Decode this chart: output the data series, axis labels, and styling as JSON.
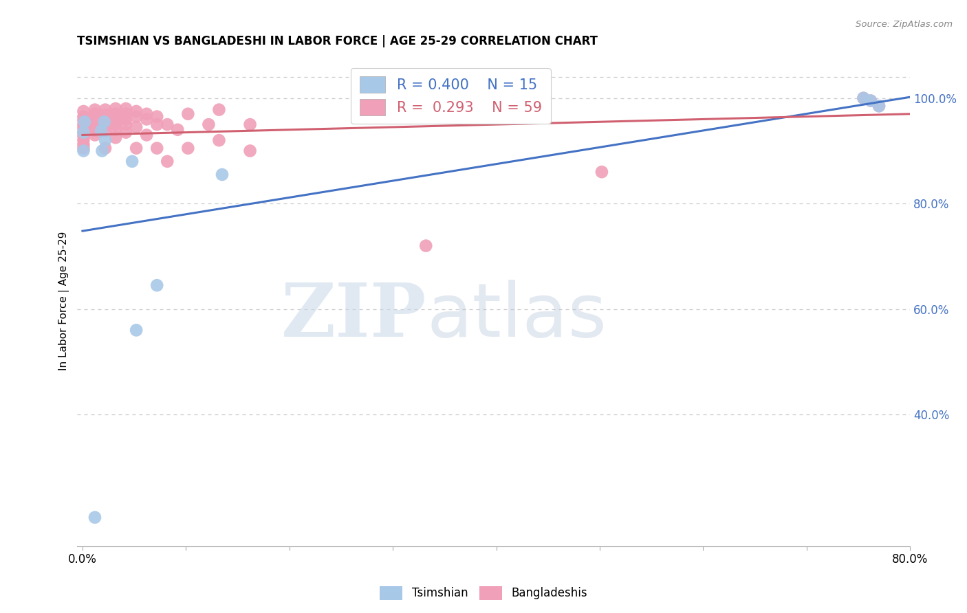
{
  "title": "TSIMSHIAN VS BANGLADESHI IN LABOR FORCE | AGE 25-29 CORRELATION CHART",
  "source": "Source: ZipAtlas.com",
  "ylabel": "In Labor Force | Age 25-29",
  "xlim": [
    -0.005,
    0.8
  ],
  "ylim": [
    0.15,
    1.08
  ],
  "x_ticks": [
    0.0,
    0.1,
    0.2,
    0.3,
    0.4,
    0.5,
    0.6,
    0.7,
    0.8
  ],
  "x_tick_labels": [
    "0.0%",
    "",
    "",
    "",
    "",
    "",
    "",
    "",
    "80.0%"
  ],
  "y_ticks_right": [
    0.4,
    0.6,
    0.8,
    1.0
  ],
  "y_tick_labels_right": [
    "40.0%",
    "60.0%",
    "80.0%",
    "100.0%"
  ],
  "grid_color": "#cccccc",
  "background_color": "#ffffff",
  "tsimshian_color": "#a8c8e8",
  "bangladeshi_color": "#f0a0b8",
  "tsimshian_line_color": "#4472c4",
  "bangladeshi_line_color": "#d06070",
  "tsimshian_R": 0.4,
  "tsimshian_N": 15,
  "bangladeshi_R": 0.293,
  "bangladeshi_N": 59,
  "tsimshian_x": [
    0.002,
    0.001,
    0.001,
    0.021,
    0.018,
    0.022,
    0.019,
    0.048,
    0.052,
    0.072,
    0.012,
    0.135,
    0.755,
    0.762,
    0.77
  ],
  "tsimshian_y": [
    0.955,
    0.935,
    0.9,
    0.955,
    0.938,
    0.92,
    0.9,
    0.88,
    0.56,
    0.645,
    0.205,
    0.855,
    1.0,
    0.995,
    0.985
  ],
  "bangladeshi_x": [
    0.001,
    0.001,
    0.001,
    0.001,
    0.001,
    0.001,
    0.001,
    0.001,
    0.001,
    0.001,
    0.012,
    0.012,
    0.012,
    0.012,
    0.012,
    0.012,
    0.012,
    0.022,
    0.022,
    0.022,
    0.022,
    0.022,
    0.022,
    0.032,
    0.032,
    0.032,
    0.032,
    0.032,
    0.032,
    0.042,
    0.042,
    0.042,
    0.042,
    0.042,
    0.052,
    0.052,
    0.052,
    0.052,
    0.062,
    0.062,
    0.062,
    0.072,
    0.072,
    0.072,
    0.082,
    0.082,
    0.092,
    0.102,
    0.102,
    0.122,
    0.132,
    0.132,
    0.162,
    0.162,
    0.332,
    0.502,
    0.755,
    0.762,
    0.77
  ],
  "bangladeshi_y": [
    0.975,
    0.965,
    0.958,
    0.95,
    0.943,
    0.935,
    0.928,
    0.92,
    0.912,
    0.905,
    0.978,
    0.97,
    0.962,
    0.954,
    0.946,
    0.938,
    0.93,
    0.978,
    0.968,
    0.958,
    0.948,
    0.938,
    0.905,
    0.98,
    0.97,
    0.96,
    0.95,
    0.94,
    0.925,
    0.98,
    0.97,
    0.96,
    0.95,
    0.935,
    0.975,
    0.965,
    0.945,
    0.905,
    0.97,
    0.96,
    0.93,
    0.965,
    0.95,
    0.905,
    0.95,
    0.88,
    0.94,
    0.97,
    0.905,
    0.95,
    0.978,
    0.92,
    0.95,
    0.9,
    0.72,
    0.86,
    1.0,
    0.995,
    0.985
  ],
  "blue_line": [
    0.0,
    0.8,
    0.748,
    1.002
  ],
  "pink_line": [
    0.0,
    0.8,
    0.93,
    0.97
  ]
}
